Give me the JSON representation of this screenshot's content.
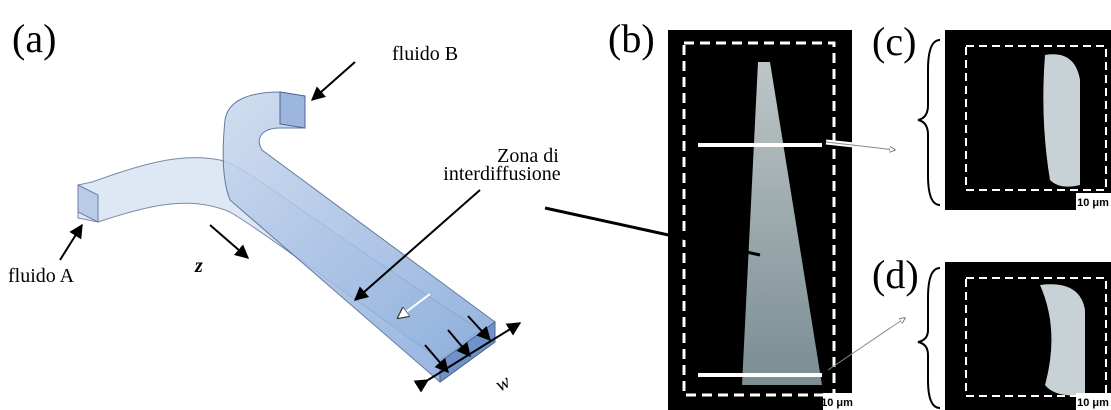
{
  "panel_a": {
    "label": "(a)",
    "fluid_b": "fluido B",
    "zone": [
      "Zona di",
      "interdiffusione"
    ],
    "fluid_a": "fluido A",
    "axis_z": "z",
    "axis_w": "w"
  },
  "panel_b": {
    "label": "(b)",
    "scale": "10 μm"
  },
  "panel_c": {
    "label": "(c)",
    "scale": "10 μm"
  },
  "panel_d": {
    "label": "(d)",
    "scale": "10 μm"
  }
}
